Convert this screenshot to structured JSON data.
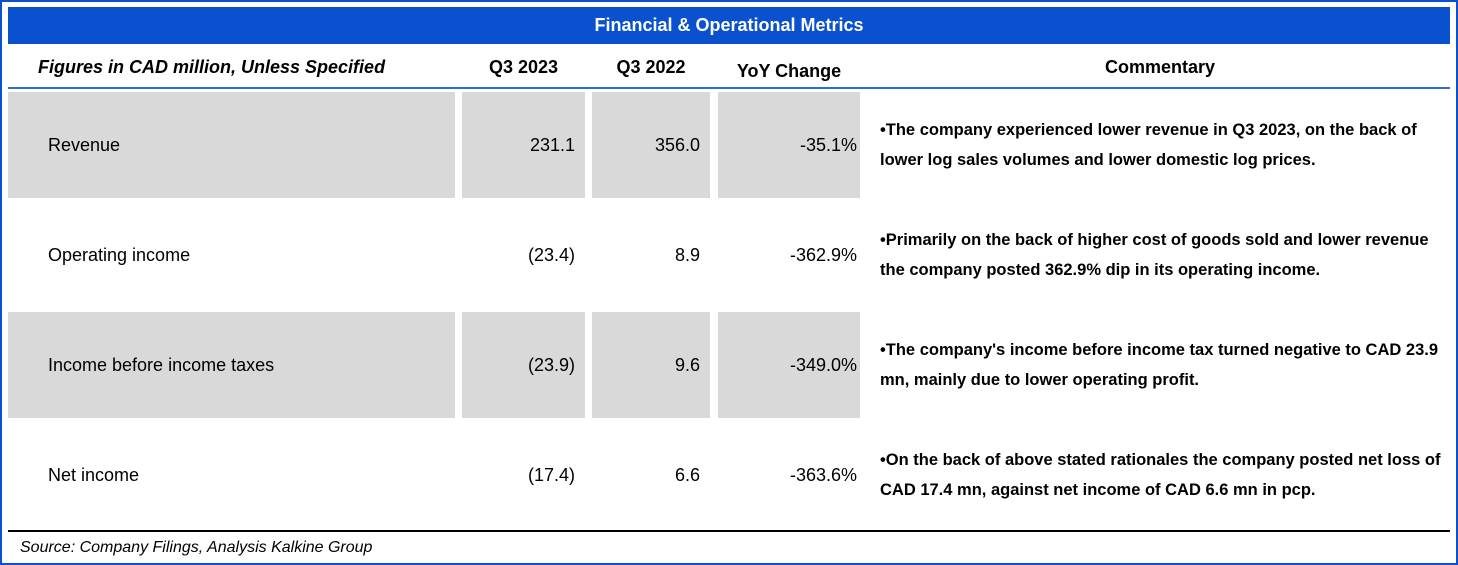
{
  "title": "Financial & Operational Metrics",
  "colors": {
    "accent_blue": "#0a51d0",
    "row_shade_gray": "#d9d9d9",
    "text": "#000000"
  },
  "table": {
    "header": {
      "figures_label": "Figures in CAD million, Unless Specified",
      "q3_2023": "Q3 2023",
      "q3_2022": "Q3 2022",
      "yoy_change": "YoY Change",
      "commentary": "Commentary"
    },
    "rows": [
      {
        "metric": "Revenue",
        "q3_2023": "231.1",
        "q3_2022": "356.0",
        "yoy_change": "-35.1%",
        "commentary": "•The company experienced lower revenue in Q3 2023, on the back of lower log sales volumes and lower domestic log prices."
      },
      {
        "metric": "Operating income",
        "q3_2023": "(23.4)",
        "q3_2022": "8.9",
        "yoy_change": "-362.9%",
        "commentary": "•Primarily on the back of higher cost of goods sold and lower revenue the company posted 362.9% dip in its operating income."
      },
      {
        "metric": "Income before income taxes",
        "q3_2023": "(23.9)",
        "q3_2022": "9.6",
        "yoy_change": "-349.0%",
        "commentary": "•The company's income before income tax turned negative to CAD 23.9 mn, mainly due to lower operating profit."
      },
      {
        "metric": "Net income",
        "q3_2023": "(17.4)",
        "q3_2022": "6.6",
        "yoy_change": "-363.6%",
        "commentary": "•On the back of above stated rationales the company posted net loss of CAD 17.4 mn, against net income of CAD 6.6 mn in pcp."
      }
    ]
  },
  "footer": {
    "source": "Source: Company Filings, Analysis Kalkine Group"
  }
}
